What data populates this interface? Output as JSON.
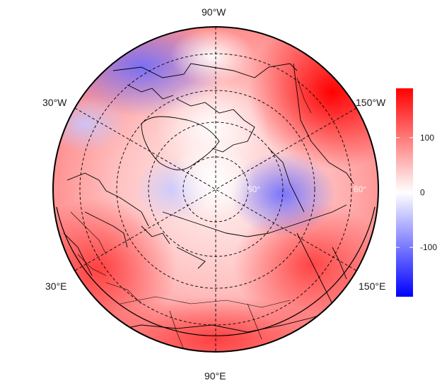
{
  "map": {
    "projection": "north-polar-stereographic",
    "gridlines": "dashed",
    "longitude_labels": [
      {
        "label": "90°W",
        "lon": -90
      },
      {
        "label": "30°W",
        "lon": -30
      },
      {
        "label": "150°W",
        "lon": -150
      },
      {
        "label": "30°E",
        "lon": 30
      },
      {
        "label": "150°E",
        "lon": 150
      },
      {
        "label": "90°E",
        "lon": 90
      }
    ],
    "latitude_labels": [
      {
        "label": "60°",
        "side": "left"
      },
      {
        "label": "60°",
        "side": "right"
      }
    ]
  },
  "colorbar": {
    "min": -190,
    "max": 190,
    "ticks": [
      {
        "value": 100,
        "label": "100"
      },
      {
        "value": 0,
        "label": "0"
      },
      {
        "value": -100,
        "label": "-100"
      }
    ],
    "colors": {
      "low": "#0000ff",
      "mid": "#ffffff",
      "high": "#ff0000"
    }
  },
  "field_features": [
    {
      "name": "strong positive anomaly",
      "sign": "positive",
      "intensity": 1.0
    },
    {
      "name": "broad positive anomaly",
      "sign": "positive",
      "intensity": 0.6
    },
    {
      "name": "negative anomaly",
      "sign": "negative",
      "intensity": 0.45
    },
    {
      "name": "weak negative anomaly",
      "sign": "negative",
      "intensity": 0.25
    }
  ]
}
